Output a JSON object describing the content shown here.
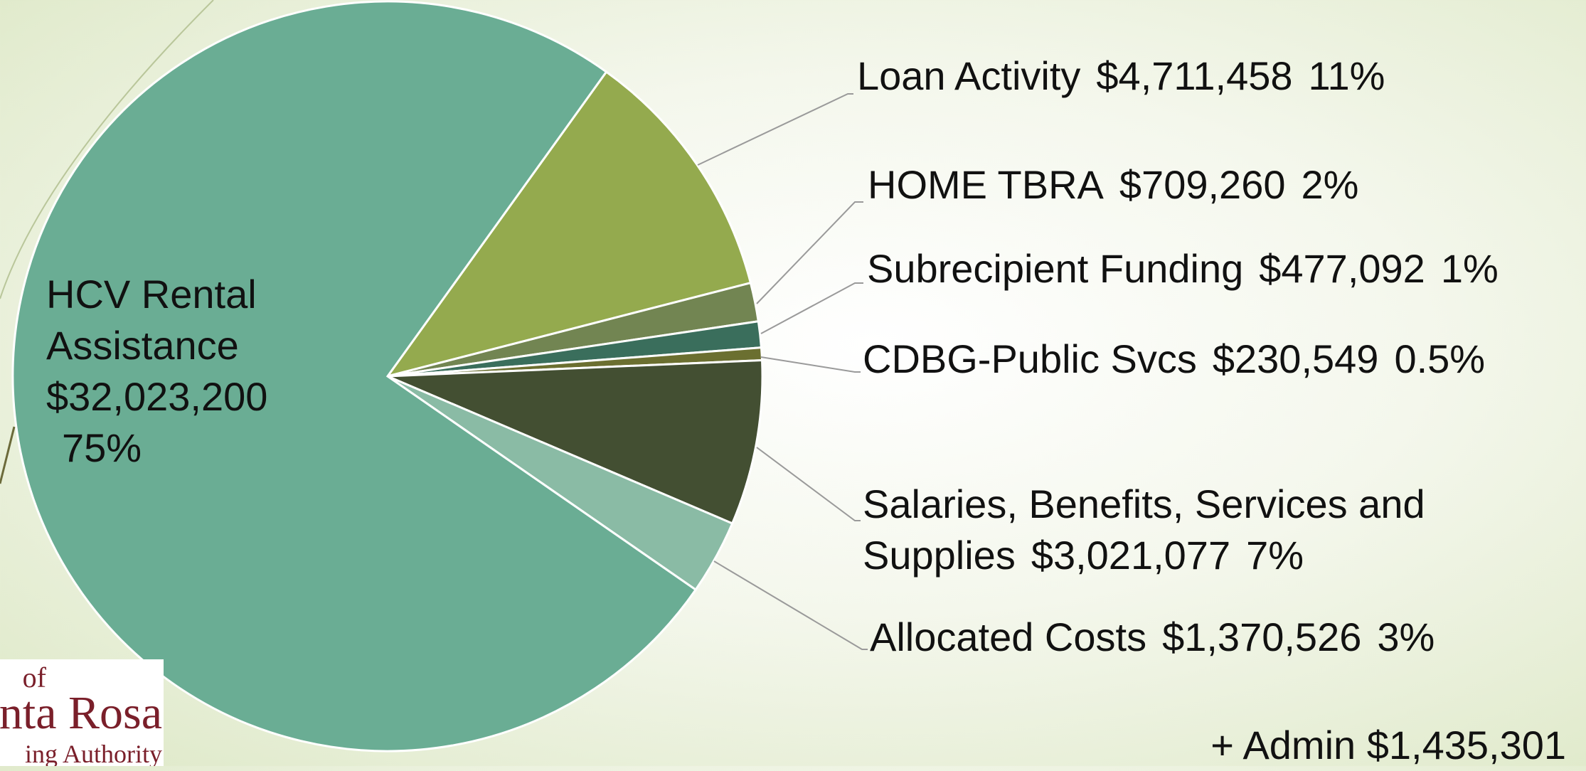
{
  "chart_data": {
    "type": "pie",
    "categories": [
      "Loan Activity",
      "HOME TBRA",
      "Subrecipient Funding",
      "CDBG-Public Svcs",
      "Salaries, Benefits, Services and Supplies",
      "Allocated Costs",
      "HCV Rental Assistance"
    ],
    "values": [
      4711458,
      709260,
      477092,
      230549,
      3021077,
      1370526,
      32023200
    ],
    "value_labels": [
      "$4,711,458",
      "$709,260",
      "$477,092",
      "$230,549",
      "$3,021,077",
      "$1,370,526",
      "$32,023,200"
    ],
    "percent_labels": [
      "11%",
      "2%",
      "1%",
      "0.5%",
      "7%",
      "3%",
      "75%"
    ],
    "colors": [
      "#94aa4e",
      "#728552",
      "#3a6e5c",
      "#6b6f30",
      "#434f32",
      "#8abba5",
      "#6aad94"
    ],
    "annotation": "+ Admin $1,435,301"
  },
  "logo": {
    "lines": [
      "of",
      "nta Rosa",
      "ing Authority"
    ]
  }
}
